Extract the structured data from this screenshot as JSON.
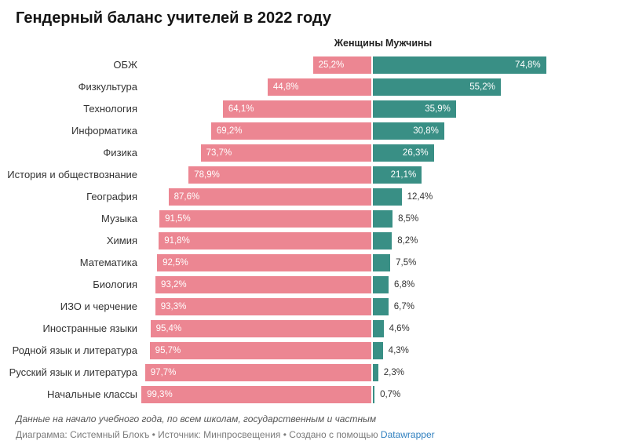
{
  "title": "Гендерный баланс учителей в 2022 году",
  "legend": {
    "women_label": "Женщины",
    "men_label": "Мужчины"
  },
  "colors": {
    "women": "#ec8692",
    "men": "#398f85",
    "link": "#3080bf",
    "value_inside": "#ffffff",
    "value_outside": "#333333"
  },
  "chart_data": {
    "type": "bar",
    "orientation": "horizontal-diverging-stacked",
    "title": "Гендерный баланс учителей в 2022 году",
    "xlim": [
      0,
      100
    ],
    "grid": false,
    "legend_position": "top-center",
    "value_format": "percent-comma-decimal",
    "categories": [
      "ОБЖ",
      "Физкультура",
      "Технология",
      "Информатика",
      "Физика",
      "История и обществознание",
      "География",
      "Музыка",
      "Химия",
      "Математика",
      "Биология",
      "ИЗО и черчение",
      "Иностранные языки",
      "Родной язык и литература",
      "Русский язык и литература",
      "Начальные классы"
    ],
    "series": [
      {
        "name": "Женщины",
        "color": "#ec8692",
        "values": [
          25.2,
          44.8,
          64.1,
          69.2,
          73.7,
          78.9,
          87.6,
          91.5,
          91.8,
          92.5,
          93.2,
          93.3,
          95.4,
          95.7,
          97.7,
          99.3
        ]
      },
      {
        "name": "Мужчины",
        "color": "#398f85",
        "values": [
          74.8,
          55.2,
          35.9,
          30.8,
          26.3,
          21.1,
          12.4,
          8.5,
          8.2,
          7.5,
          6.8,
          6.7,
          4.6,
          4.3,
          2.3,
          0.7
        ]
      }
    ]
  },
  "footer": {
    "note": "Данные на начало учебного года, по всем школам, государственным и частным",
    "byline_prefix": "Диаграмма: Системный Блокъ • Источник: Минпросвещения • Создано с помощью ",
    "link_label": "Datawrapper"
  }
}
